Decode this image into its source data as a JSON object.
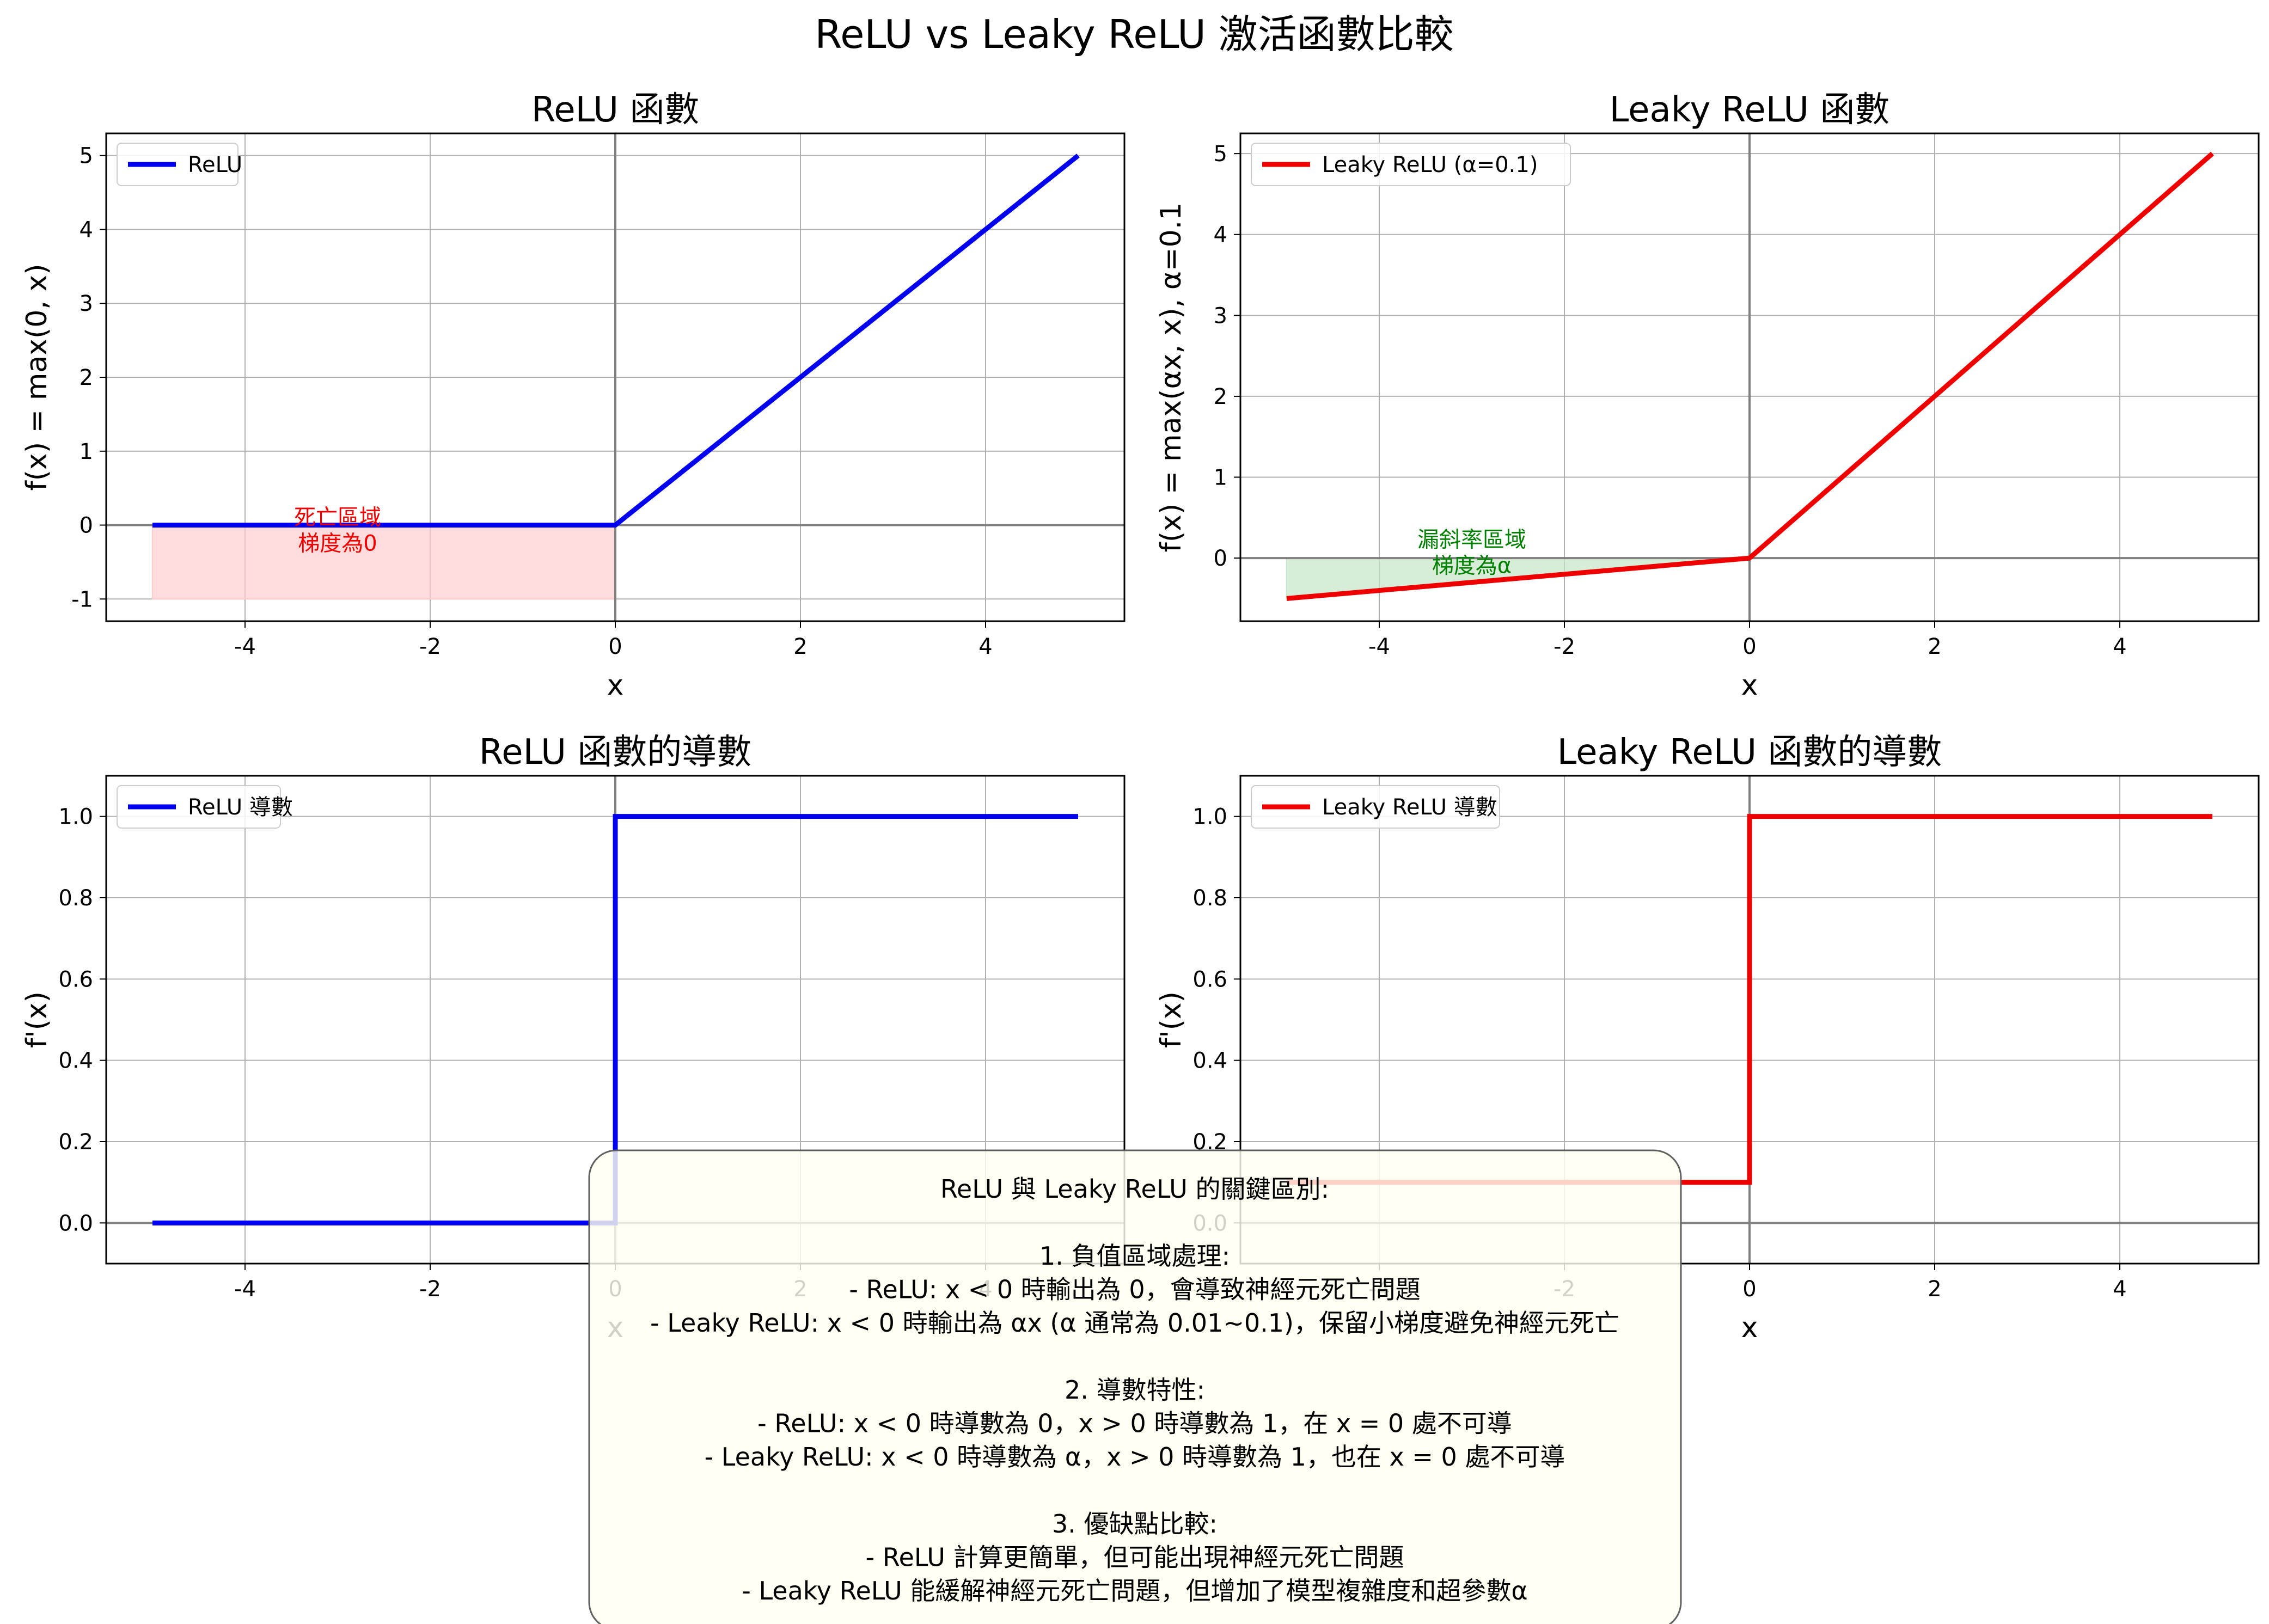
{
  "figure": {
    "title": "ReLU vs Leaky ReLU 激活函數比較",
    "colors": {
      "relu": "#0000ee",
      "leaky": "#ee0000",
      "grid": "#b0b0b0",
      "axis_line": "#808080",
      "box_fill": "#fffff0",
      "dead_fill": "#ffcccc",
      "leak_fill": "#c8e6c8",
      "dead_text": "#ee0000",
      "leak_text": "#008000"
    }
  },
  "chart_data": [
    {
      "id": "relu",
      "type": "line",
      "title": "ReLU 函數",
      "xlabel": "x",
      "ylabel": "f(x) = max(0, x)",
      "xlim": [
        -5.5,
        5.5
      ],
      "ylim": [
        -1.3,
        5.3
      ],
      "xticks": [
        -4,
        -2,
        0,
        2,
        4
      ],
      "xtick_labels": [
        "-4",
        "-2",
        "0",
        "2",
        "4"
      ],
      "yticks": [
        -1,
        0,
        1,
        2,
        3,
        4,
        5
      ],
      "ytick_labels": [
        "-1",
        "0",
        "1",
        "2",
        "3",
        "4",
        "5"
      ],
      "grid": true,
      "legend": "upper left",
      "series": [
        {
          "name": "ReLU",
          "color": "#0000ee",
          "x": [
            -5,
            0,
            5
          ],
          "y": [
            0,
            0,
            5
          ]
        }
      ],
      "fill": {
        "x": [
          -5,
          0
        ],
        "y1": [
          -1,
          -1
        ],
        "y2": [
          0,
          0
        ],
        "color": "#ffcccc"
      },
      "annotation": {
        "lines": [
          "死亡區域",
          "梯度為0"
        ],
        "x": -3,
        "y": -0.2,
        "color": "#ee0000"
      }
    },
    {
      "id": "leaky",
      "type": "line",
      "title": "Leaky ReLU 函數",
      "xlabel": "x",
      "ylabel": "f(x) = max(αx, x), α=0.1",
      "xlim": [
        -5.5,
        5.5
      ],
      "ylim": [
        -0.78,
        5.25
      ],
      "xticks": [
        -4,
        -2,
        0,
        2,
        4
      ],
      "xtick_labels": [
        "-4",
        "-2",
        "0",
        "2",
        "4"
      ],
      "yticks": [
        0,
        1,
        2,
        3,
        4,
        5
      ],
      "ytick_labels": [
        "0",
        "1",
        "2",
        "3",
        "4",
        "5"
      ],
      "grid": true,
      "legend": "upper left",
      "series": [
        {
          "name": "Leaky ReLU (α=0.1)",
          "color": "#ee0000",
          "x": [
            -5,
            0,
            5
          ],
          "y": [
            -0.5,
            0,
            5
          ]
        }
      ],
      "fill": {
        "x": [
          -5,
          0
        ],
        "y1": [
          -0.5,
          0
        ],
        "y2": [
          0,
          0
        ],
        "color": "#c8e6c8"
      },
      "annotation": {
        "lines": [
          "漏斜率區域",
          "梯度為α"
        ],
        "x": -3,
        "y": -0.05,
        "color": "#008000"
      }
    },
    {
      "id": "relu-deriv",
      "type": "line",
      "title": "ReLU 函數的導數",
      "xlabel": "x",
      "ylabel": "f'(x)",
      "xlim": [
        -5.5,
        5.5
      ],
      "ylim": [
        -0.1,
        1.1
      ],
      "xticks": [
        -4,
        -2,
        0,
        2,
        4
      ],
      "xtick_labels": [
        "-4",
        "-2",
        "0",
        "2",
        "4"
      ],
      "yticks": [
        0,
        0.2,
        0.4,
        0.6,
        0.8,
        1.0
      ],
      "ytick_labels": [
        "0.0",
        "0.2",
        "0.4",
        "0.6",
        "0.8",
        "1.0"
      ],
      "grid": true,
      "legend": "upper left",
      "series": [
        {
          "name": "ReLU 導數",
          "color": "#0000ee",
          "x": [
            -5,
            0,
            0,
            5
          ],
          "y": [
            0,
            0,
            1,
            1
          ]
        }
      ]
    },
    {
      "id": "leaky-deriv",
      "type": "line",
      "title": "Leaky ReLU 函數的導數",
      "xlabel": "x",
      "ylabel": "f'(x)",
      "xlim": [
        -5.5,
        5.5
      ],
      "ylim": [
        -0.1,
        1.1
      ],
      "xticks": [
        -4,
        -2,
        0,
        2,
        4
      ],
      "xtick_labels": [
        "-4",
        "-2",
        "0",
        "2",
        "4"
      ],
      "yticks": [
        0,
        0.2,
        0.4,
        0.6,
        0.8,
        1.0
      ],
      "ytick_labels": [
        "0.0",
        "0.2",
        "0.4",
        "0.6",
        "0.8",
        "1.0"
      ],
      "grid": true,
      "legend": "upper left",
      "series": [
        {
          "name": "Leaky ReLU 導數",
          "color": "#ee0000",
          "x": [
            -5,
            0,
            0,
            5
          ],
          "y": [
            0.1,
            0.1,
            1,
            1
          ]
        }
      ]
    }
  ],
  "notes_box": {
    "lines": [
      "ReLU 與 Leaky ReLU 的關鍵區別:",
      "",
      "1. 負值區域處理:",
      "- ReLU: x < 0 時輸出為 0，會導致神經元死亡問題",
      "- Leaky ReLU: x < 0 時輸出為 αx (α 通常為 0.01~0.1)，保留小梯度避免神經元死亡",
      "",
      "2. 導數特性:",
      "- ReLU: x < 0 時導數為 0，x > 0 時導數為 1，在 x = 0 處不可導",
      "- Leaky ReLU: x < 0 時導數為 α，x > 0 時導數為 1，也在 x = 0 處不可導",
      "",
      "3. 優缺點比較:",
      "- ReLU 計算更簡單，但可能出現神經元死亡問題",
      "- Leaky ReLU 能緩解神經元死亡問題，但增加了模型複雜度和超參數α"
    ]
  }
}
